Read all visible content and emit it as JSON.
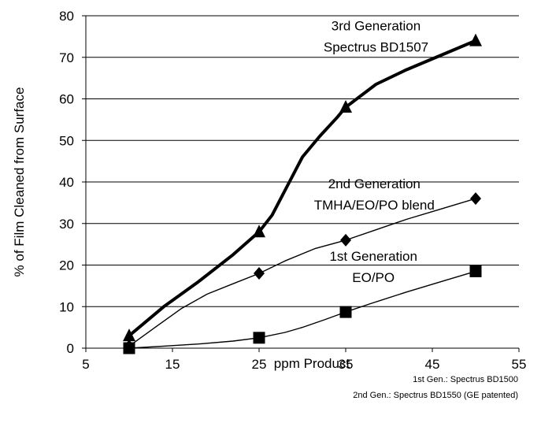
{
  "chart_data": {
    "type": "line",
    "x_ticks": [
      5,
      15,
      25,
      35,
      45,
      55
    ],
    "y_ticks": [
      0,
      10,
      20,
      30,
      40,
      50,
      60,
      70,
      80
    ],
    "xlim": [
      5,
      55
    ],
    "ylim": [
      0,
      80
    ],
    "xlabel": "ppm Product",
    "ylabel": "% of Film Cleaned from Surface",
    "grid": "horizontal",
    "series": [
      {
        "marker": "triangle",
        "line": "thick",
        "color": "#000000",
        "points": [
          [
            10,
            3
          ],
          [
            25,
            28
          ],
          [
            35,
            58
          ],
          [
            50,
            74
          ]
        ],
        "curve": [
          [
            10,
            3
          ],
          [
            14,
            10
          ],
          [
            18,
            16
          ],
          [
            22,
            22.5
          ],
          [
            25,
            28
          ],
          [
            26.5,
            32
          ],
          [
            28.5,
            40
          ],
          [
            30,
            46
          ],
          [
            32,
            51
          ],
          [
            34,
            55.5
          ],
          [
            35,
            58
          ],
          [
            38.5,
            63.5
          ],
          [
            42,
            67
          ],
          [
            46,
            70.5
          ],
          [
            50,
            74
          ]
        ]
      },
      {
        "marker": "diamond",
        "line": "thin",
        "color": "#000000",
        "points": [
          [
            10,
            0.5
          ],
          [
            25,
            18
          ],
          [
            35,
            26
          ],
          [
            50,
            36
          ]
        ],
        "curve": [
          [
            10,
            0.5
          ],
          [
            13,
            5
          ],
          [
            16,
            9.5
          ],
          [
            19,
            13
          ],
          [
            22,
            15.5
          ],
          [
            25,
            18
          ],
          [
            28,
            21
          ],
          [
            31.5,
            24
          ],
          [
            35,
            26
          ],
          [
            38.5,
            28.5
          ],
          [
            42,
            31
          ],
          [
            46,
            33.5
          ],
          [
            50,
            36
          ]
        ]
      },
      {
        "marker": "square",
        "line": "thin",
        "color": "#000000",
        "points": [
          [
            10,
            0
          ],
          [
            25,
            2.5
          ],
          [
            35,
            8.7
          ],
          [
            50,
            18.5
          ]
        ],
        "curve": [
          [
            10,
            0
          ],
          [
            14,
            0.5
          ],
          [
            18,
            1
          ],
          [
            22,
            1.7
          ],
          [
            25,
            2.5
          ],
          [
            28,
            3.8
          ],
          [
            30,
            5
          ],
          [
            32.5,
            6.8
          ],
          [
            35,
            8.7
          ],
          [
            38,
            10.8
          ],
          [
            42,
            13.5
          ],
          [
            46,
            16
          ],
          [
            50,
            18.5
          ]
        ]
      }
    ],
    "annotations": [
      {
        "lines": [
          "3rd Generation",
          "Spectrus BD1507"
        ],
        "x": 38.5,
        "y": 76.5
      },
      {
        "lines": [
          "2nd Generation",
          "TMHA/EO/PO blend"
        ],
        "x": 38.3,
        "y": 38.5
      },
      {
        "lines": [
          "1st Generation",
          "EO/PO"
        ],
        "x": 38.2,
        "y": 21
      }
    ]
  },
  "footnotes": [
    "1st Gen.: Spectrus BD1500",
    "2nd Gen.: Spectrus BD1550 (GE patented)"
  ]
}
